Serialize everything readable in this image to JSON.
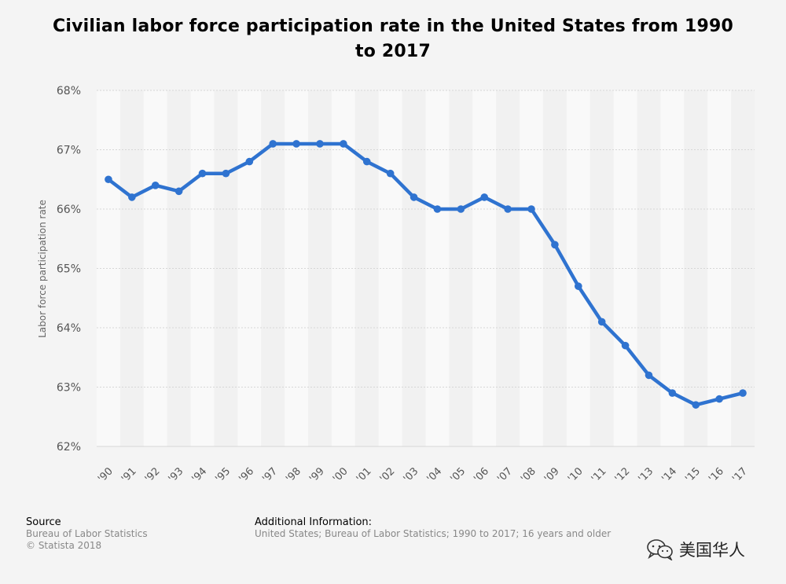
{
  "chart_data": {
    "type": "line",
    "title": "Civilian labor force participation rate in the United States from 1990 to 2017",
    "xlabel": "",
    "ylabel": "Labor force participation rate",
    "ylim": [
      62,
      68
    ],
    "yticks": [
      "62%",
      "63%",
      "64%",
      "65%",
      "66%",
      "67%",
      "68%"
    ],
    "categories": [
      "'90",
      "'91",
      "'92",
      "'93",
      "'94",
      "'95",
      "'96",
      "'97",
      "'98",
      "'99",
      "'00",
      "'01",
      "'02",
      "'03",
      "'04",
      "'05",
      "'06",
      "'07",
      "'08",
      "'09",
      "'10",
      "'11",
      "'12",
      "'13",
      "'14",
      "'15",
      "'16",
      "'17"
    ],
    "series": [
      {
        "name": "Labor force participation rate",
        "color": "#2f73d0",
        "values": [
          66.5,
          66.2,
          66.4,
          66.3,
          66.6,
          66.6,
          66.8,
          67.1,
          67.1,
          67.1,
          67.1,
          66.8,
          66.6,
          66.2,
          66.0,
          66.0,
          66.2,
          66.0,
          66.0,
          65.4,
          64.7,
          64.1,
          63.7,
          63.2,
          62.9,
          62.7,
          62.8,
          62.9
        ]
      }
    ]
  },
  "footer": {
    "source_heading": "Source",
    "source_lines": [
      "Bureau of Labor Statistics",
      "© Statista 2018"
    ],
    "additional_heading": "Additional Information:",
    "additional_text": "United States; Bureau of Labor Statistics; 1990 to 2017; 16 years and older"
  },
  "watermark": {
    "icon": "wechat-icon",
    "text": "美国华人"
  },
  "colors": {
    "line": "#2f73d0",
    "band_light": "#f9f9f9",
    "band_dark": "#f1f1f1",
    "grid": "#d6d6d6"
  }
}
